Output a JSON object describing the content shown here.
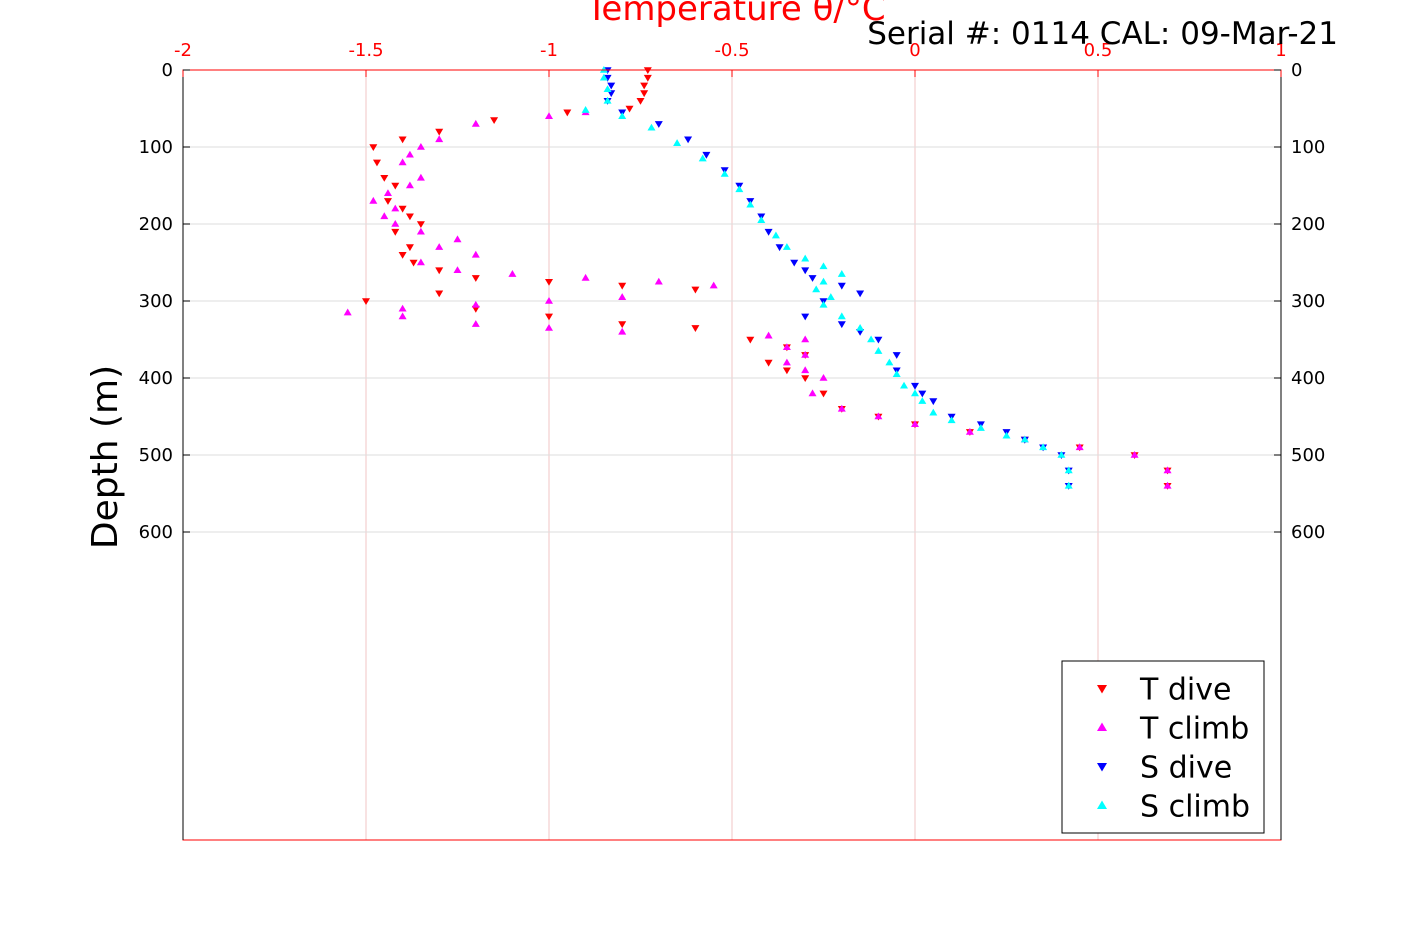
{
  "chart_data": {
    "type": "scatter",
    "title": "Temperature θ/°C",
    "annotation": "Serial #: 0114  CAL: 09-Mar-21",
    "xlabel": "Temperature θ/°C",
    "ylabel": "Depth (m)",
    "xlim": [
      -2,
      1
    ],
    "ylim": [
      0,
      1000
    ],
    "y_inverted": true,
    "x_axis_position": "top",
    "x_ticks": [
      -2,
      -1.5,
      -1,
      -0.5,
      0,
      0.5,
      1
    ],
    "x_tick_labels": [
      "-2",
      "-1.5",
      "-1",
      "-0.5",
      "0",
      "0.5",
      "1"
    ],
    "y_ticks": [
      0,
      100,
      200,
      300,
      400,
      500,
      600
    ],
    "y_tick_labels": [
      "0",
      "100",
      "200",
      "300",
      "400",
      "500",
      "600"
    ],
    "grid": true,
    "legend_position": "bottom-right",
    "series": [
      {
        "name": "T dive",
        "color": "#ff0000",
        "marker": "triangle-down",
        "x": [
          -0.73,
          -0.73,
          -0.74,
          -0.74,
          -0.75,
          -0.78,
          -0.95,
          -1.15,
          -1.3,
          -1.4,
          -1.48,
          -1.47,
          -1.45,
          -1.42,
          -1.44,
          -1.4,
          -1.38,
          -1.35,
          -1.42,
          -1.38,
          -1.4,
          -1.37,
          -1.3,
          -1.2,
          -1.0,
          -0.8,
          -0.6,
          -1.3,
          -1.5,
          -1.2,
          -1.0,
          -0.8,
          -0.6,
          -0.45,
          -0.35,
          -0.3,
          -0.4,
          -0.35,
          -0.3,
          -0.25,
          -0.2,
          -0.1,
          0.0,
          0.15,
          0.3,
          0.45,
          0.6,
          0.69,
          0.69
        ],
        "y": [
          0,
          10,
          20,
          30,
          40,
          50,
          55,
          65,
          80,
          90,
          100,
          120,
          140,
          150,
          170,
          180,
          190,
          200,
          210,
          230,
          240,
          250,
          260,
          270,
          275,
          280,
          285,
          290,
          300,
          310,
          320,
          330,
          335,
          350,
          360,
          370,
          380,
          390,
          400,
          420,
          440,
          450,
          460,
          470,
          480,
          490,
          500,
          520,
          540
        ]
      },
      {
        "name": "T climb",
        "color": "#ff00ff",
        "marker": "triangle-up",
        "x": [
          0.69,
          0.69,
          0.6,
          0.45,
          0.3,
          0.15,
          0.0,
          -0.1,
          -0.2,
          -0.28,
          -0.25,
          -0.3,
          -0.35,
          -0.3,
          -0.35,
          -0.3,
          -0.4,
          -0.8,
          -1.0,
          -1.2,
          -1.4,
          -1.55,
          -1.4,
          -1.2,
          -1.0,
          -0.8,
          -0.55,
          -0.7,
          -0.9,
          -1.1,
          -1.25,
          -1.35,
          -1.2,
          -1.3,
          -1.25,
          -1.35,
          -1.42,
          -1.45,
          -1.42,
          -1.48,
          -1.44,
          -1.38,
          -1.35,
          -1.4,
          -1.38,
          -1.35,
          -1.3,
          -1.2,
          -1.0,
          -0.9
        ],
        "y": [
          540,
          520,
          500,
          490,
          480,
          470,
          460,
          450,
          440,
          420,
          400,
          390,
          380,
          370,
          360,
          350,
          345,
          340,
          335,
          330,
          320,
          315,
          310,
          305,
          300,
          295,
          280,
          275,
          270,
          265,
          260,
          250,
          240,
          230,
          220,
          210,
          200,
          190,
          180,
          170,
          160,
          150,
          140,
          120,
          110,
          100,
          90,
          70,
          60,
          55
        ]
      },
      {
        "name": "S dive",
        "color": "#0000ff",
        "marker": "triangle-down",
        "x": [
          -0.84,
          -0.84,
          -0.83,
          -0.83,
          -0.84,
          -0.8,
          -0.7,
          -0.62,
          -0.57,
          -0.52,
          -0.48,
          -0.45,
          -0.42,
          -0.4,
          -0.37,
          -0.33,
          -0.3,
          -0.28,
          -0.2,
          -0.15,
          -0.25,
          -0.3,
          -0.2,
          -0.15,
          -0.1,
          -0.05,
          -0.05,
          0.0,
          0.02,
          0.05,
          0.1,
          0.18,
          0.25,
          0.3,
          0.35,
          0.4,
          0.42,
          0.42
        ],
        "y": [
          0,
          10,
          20,
          30,
          40,
          55,
          70,
          90,
          110,
          130,
          150,
          170,
          190,
          210,
          230,
          250,
          260,
          270,
          280,
          290,
          300,
          320,
          330,
          340,
          350,
          370,
          390,
          410,
          420,
          430,
          450,
          460,
          470,
          480,
          490,
          500,
          520,
          540
        ]
      },
      {
        "name": "S climb",
        "color": "#00ffff",
        "marker": "triangle-up",
        "x": [
          0.42,
          0.42,
          0.4,
          0.35,
          0.3,
          0.25,
          0.18,
          0.1,
          0.05,
          0.02,
          0.0,
          -0.03,
          -0.05,
          -0.07,
          -0.1,
          -0.12,
          -0.15,
          -0.2,
          -0.25,
          -0.23,
          -0.27,
          -0.25,
          -0.2,
          -0.25,
          -0.3,
          -0.35,
          -0.38,
          -0.42,
          -0.45,
          -0.48,
          -0.52,
          -0.58,
          -0.65,
          -0.72,
          -0.8,
          -0.9,
          -0.84,
          -0.84,
          -0.85,
          -0.85
        ],
        "y": [
          540,
          520,
          500,
          490,
          480,
          475,
          465,
          455,
          445,
          430,
          420,
          410,
          395,
          380,
          365,
          350,
          335,
          320,
          305,
          295,
          285,
          275,
          265,
          255,
          245,
          230,
          215,
          195,
          175,
          155,
          135,
          115,
          95,
          75,
          60,
          52,
          40,
          25,
          10,
          0
        ]
      }
    ]
  }
}
